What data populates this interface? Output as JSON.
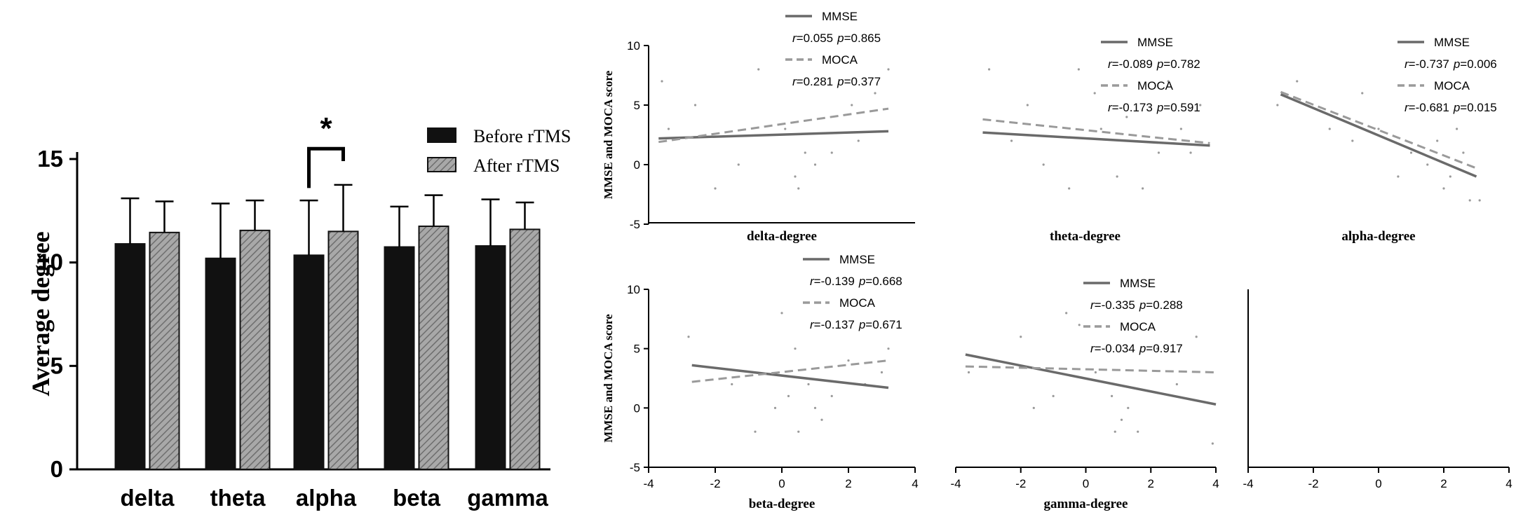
{
  "chart_data": [
    {
      "type": "bar",
      "panel": "bar-chart",
      "categories": [
        "delta",
        "theta",
        "alpha",
        "beta",
        "gamma"
      ],
      "series": [
        {
          "name": "Before rTMS",
          "color": "#111111",
          "pattern": "solid",
          "values": [
            10.9,
            10.2,
            10.35,
            10.75,
            10.8
          ],
          "error": [
            2.2,
            2.65,
            2.65,
            1.95,
            2.25
          ]
        },
        {
          "name": "After rTMS",
          "color": "#9a9a9a",
          "pattern": "diagonal-hatch",
          "values": [
            11.45,
            11.55,
            11.5,
            11.75,
            11.6
          ],
          "error": [
            1.5,
            1.45,
            2.25,
            1.5,
            1.3
          ]
        }
      ],
      "ylabel": "Average degree",
      "ylim": [
        0,
        15
      ],
      "yticks": [
        "0",
        "5",
        "10",
        "15"
      ],
      "significance": {
        "category": "alpha",
        "label": "*"
      }
    },
    {
      "type": "scatter",
      "panel": "delta-degree",
      "xlabel": "delta-degree",
      "ylabel": "MMSE and MOCA score",
      "xlim": [
        -4,
        4
      ],
      "ylim": [
        -5,
        10
      ],
      "yticks": [
        "10",
        "5",
        "0",
        "-5"
      ],
      "series": [
        {
          "name": "MMSE",
          "r": "=0.055",
          "p": "=0.865",
          "line": [
            [
              -3.7,
              2.2
            ],
            [
              3.2,
              2.8
            ]
          ]
        },
        {
          "name": "MOCA",
          "r": "=0.281",
          "p": "=0.377",
          "line": [
            [
              -3.7,
              1.9
            ],
            [
              3.2,
              4.7
            ]
          ]
        }
      ],
      "points": [
        [
          -3.6,
          7
        ],
        [
          -3.4,
          3
        ],
        [
          -2.6,
          5
        ],
        [
          -2.0,
          -2
        ],
        [
          -1.3,
          0
        ],
        [
          -0.7,
          8
        ],
        [
          0.1,
          3
        ],
        [
          0.4,
          -1
        ],
        [
          0.5,
          -2
        ],
        [
          0.7,
          1
        ],
        [
          1.0,
          0
        ],
        [
          1.5,
          1
        ],
        [
          2.1,
          5
        ],
        [
          2.3,
          2
        ],
        [
          2.8,
          6
        ],
        [
          3.2,
          8
        ]
      ]
    },
    {
      "type": "scatter",
      "panel": "theta-degree",
      "xlabel": "theta-degree",
      "xlim": [
        -4,
        4
      ],
      "ylim": [
        -5,
        10
      ],
      "series": [
        {
          "name": "MMSE",
          "r": "=-0.089",
          "p": "=0.782",
          "line": [
            [
              -3.2,
              2.7
            ],
            [
              3.9,
              1.6
            ]
          ]
        },
        {
          "name": "MOCA",
          "r": "=-0.173",
          "p": "=0.591",
          "line": [
            [
              -3.2,
              3.8
            ],
            [
              3.9,
              1.8
            ]
          ]
        }
      ],
      "points": [
        [
          -3.0,
          8
        ],
        [
          -2.3,
          2
        ],
        [
          -1.8,
          5
        ],
        [
          -1.3,
          0
        ],
        [
          -0.5,
          -2
        ],
        [
          -0.2,
          8
        ],
        [
          0.3,
          6
        ],
        [
          0.5,
          3
        ],
        [
          1.0,
          -1
        ],
        [
          1.3,
          4
        ],
        [
          1.8,
          -2
        ],
        [
          2.3,
          1
        ],
        [
          2.6,
          7
        ],
        [
          3.0,
          3
        ],
        [
          3.3,
          1
        ],
        [
          3.6,
          5
        ]
      ]
    },
    {
      "type": "scatter",
      "panel": "alpha-degree",
      "xlabel": "alpha-degree",
      "xlim": [
        -4,
        4
      ],
      "ylim": [
        -5,
        10
      ],
      "series": [
        {
          "name": "MMSE",
          "r": "=-0.737",
          "p": "=0.006",
          "line": [
            [
              -3.0,
              5.9
            ],
            [
              3.0,
              -1.0
            ]
          ]
        },
        {
          "name": "MOCA",
          "r": "=-0.681",
          "p": "=0.015",
          "line": [
            [
              -3.0,
              6.1
            ],
            [
              3.0,
              -0.3
            ]
          ]
        }
      ],
      "points": [
        [
          -3.1,
          5
        ],
        [
          -2.5,
          7
        ],
        [
          -1.5,
          3
        ],
        [
          -0.8,
          2
        ],
        [
          -0.5,
          6
        ],
        [
          0.0,
          3
        ],
        [
          0.6,
          -1
        ],
        [
          1.0,
          1
        ],
        [
          1.5,
          0
        ],
        [
          2.0,
          -2
        ],
        [
          2.2,
          -1
        ],
        [
          2.6,
          1
        ],
        [
          2.8,
          -3
        ],
        [
          3.1,
          -3
        ],
        [
          2.4,
          3
        ],
        [
          1.8,
          2
        ]
      ]
    },
    {
      "type": "scatter",
      "panel": "beta-degree",
      "xlabel": "beta-degree",
      "ylabel": "MMSE and MOCA score",
      "xlim": [
        -4,
        4
      ],
      "ylim": [
        -5,
        10
      ],
      "xticks": [
        "-4",
        "-2",
        "0",
        "2",
        "4"
      ],
      "yticks": [
        "10",
        "5",
        "0",
        "-5"
      ],
      "series": [
        {
          "name": "MMSE",
          "r": "=-0.139",
          "p": "=0.668",
          "line": [
            [
              -2.7,
              3.6
            ],
            [
              3.2,
              1.7
            ]
          ]
        },
        {
          "name": "MOCA",
          "r": "=-0.137",
          "p": "=0.671",
          "line": [
            [
              -2.7,
              2.2
            ],
            [
              3.2,
              4.0
            ]
          ]
        }
      ],
      "points": [
        [
          -2.8,
          6
        ],
        [
          -1.5,
          2
        ],
        [
          -0.8,
          -2
        ],
        [
          -0.2,
          0
        ],
        [
          0.0,
          8
        ],
        [
          0.2,
          1
        ],
        [
          0.4,
          5
        ],
        [
          0.5,
          -2
        ],
        [
          0.8,
          2
        ],
        [
          1.0,
          0
        ],
        [
          1.2,
          -1
        ],
        [
          1.5,
          1
        ],
        [
          2.0,
          4
        ],
        [
          2.5,
          2
        ],
        [
          3.0,
          3
        ],
        [
          3.2,
          5
        ]
      ]
    },
    {
      "type": "scatter",
      "panel": "gamma-degree",
      "xlabel": "gamma-degree",
      "xlim": [
        -4,
        4
      ],
      "ylim": [
        -5,
        10
      ],
      "xticks": [
        "-4",
        "-2",
        "0",
        "2",
        "4"
      ],
      "series": [
        {
          "name": "MMSE",
          "r": "=-0.335",
          "p": "=0.288",
          "line": [
            [
              -3.7,
              4.5
            ],
            [
              4.0,
              0.3
            ]
          ]
        },
        {
          "name": "MOCA",
          "r": "=-0.034",
          "p": "=0.917",
          "line": [
            [
              -3.7,
              3.5
            ],
            [
              4.0,
              3.0
            ]
          ]
        }
      ],
      "points": [
        [
          -3.6,
          3
        ],
        [
          -2.0,
          6
        ],
        [
          -1.6,
          0
        ],
        [
          -1.0,
          1
        ],
        [
          -0.6,
          8
        ],
        [
          -0.2,
          7
        ],
        [
          0.3,
          3
        ],
        [
          0.8,
          1
        ],
        [
          0.9,
          -2
        ],
        [
          1.1,
          -1
        ],
        [
          1.3,
          0
        ],
        [
          1.6,
          -2
        ],
        [
          2.2,
          5
        ],
        [
          2.8,
          2
        ],
        [
          3.4,
          6
        ],
        [
          3.9,
          -3
        ]
      ]
    },
    {
      "type": "scatter",
      "panel": "empty-panel",
      "xlim": [
        -4,
        4
      ],
      "ylim": [
        -5,
        10
      ],
      "xticks": [
        "-4",
        "-2",
        "0",
        "2",
        "4"
      ],
      "series": [],
      "points": []
    }
  ]
}
